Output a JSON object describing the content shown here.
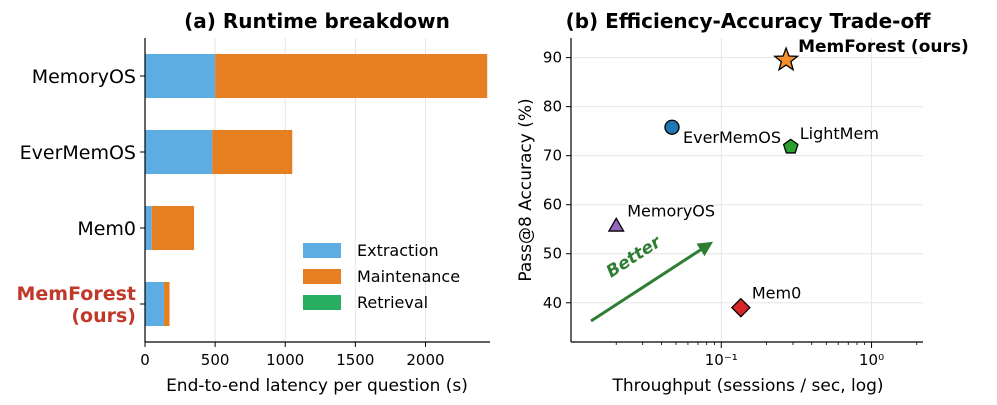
{
  "colors": {
    "extraction": "#5DADE2",
    "maintenance": "#E67E22",
    "retrieval": "#27AE60",
    "highlight": "#C0392B",
    "better": "#2E7D32",
    "grid": "#e6e6e6"
  },
  "chart_data": [
    {
      "type": "bar",
      "orientation": "horizontal",
      "stacked": true,
      "title": "(a) Runtime breakdown",
      "xlabel": "End-to-end latency per question (s)",
      "ylabel": "",
      "xlim": [
        0,
        2460
      ],
      "xticks": [
        0,
        500,
        1000,
        1500,
        2000
      ],
      "xtick_labels": [
        "0",
        "500",
        "1000",
        "1500",
        "2000"
      ],
      "grid": "vertical",
      "legend_position": "lower-right",
      "categories": [
        {
          "label": "MemoryOS",
          "highlight": false
        },
        {
          "label": "EverMemOS",
          "highlight": false
        },
        {
          "label": "Mem0",
          "highlight": false
        },
        {
          "label": "MemForest\n(ours)",
          "highlight": true
        }
      ],
      "series": [
        {
          "name": "Extraction",
          "color_key": "extraction",
          "values": [
            500,
            480,
            48,
            135
          ]
        },
        {
          "name": "Maintenance",
          "color_key": "maintenance",
          "values": [
            1940,
            570,
            302,
            40
          ]
        },
        {
          "name": "Retrieval",
          "color_key": "retrieval",
          "values": [
            0,
            0,
            0,
            0
          ]
        }
      ]
    },
    {
      "type": "scatter",
      "title": "(b) Efficiency-Accuracy Trade-off",
      "xlabel": "Throughput (sessions / sec, log)",
      "ylabel": "Pass@8 Accuracy  (%)",
      "xscale": "log",
      "xlim": [
        0.01,
        2.2
      ],
      "ylim": [
        32,
        94
      ],
      "xticks": [
        0.1,
        1
      ],
      "xtick_labels": [
        "10⁻¹",
        "10⁰"
      ],
      "yticks": [
        40,
        50,
        60,
        70,
        80,
        90
      ],
      "grid": true,
      "annotation": "Better",
      "points": [
        {
          "name": "MemForest (ours)",
          "x": 0.27,
          "y": 89.5,
          "marker": "star",
          "color": "#F28E2B",
          "bold": true
        },
        {
          "name": "EverMemOS",
          "x": 0.047,
          "y": 75.8,
          "marker": "circle",
          "color": "#1F77B4",
          "bold": false
        },
        {
          "name": "LightMem",
          "x": 0.29,
          "y": 71.8,
          "marker": "pentagon",
          "color": "#2CA02C",
          "bold": false
        },
        {
          "name": "MemoryOS",
          "x": 0.02,
          "y": 55.8,
          "marker": "triangle",
          "color": "#9467BD",
          "bold": false
        },
        {
          "name": "Mem0",
          "x": 0.135,
          "y": 39,
          "marker": "diamond",
          "color": "#D62728",
          "bold": false
        }
      ]
    }
  ]
}
